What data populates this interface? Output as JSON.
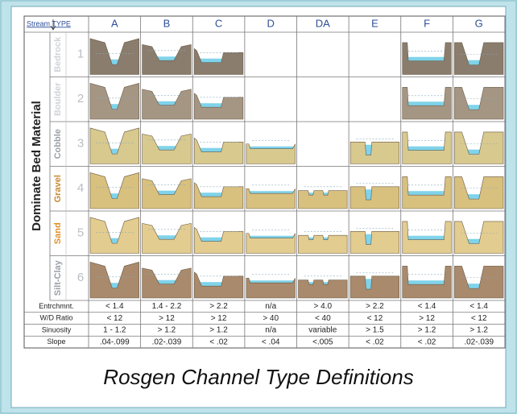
{
  "header": {
    "stream_type": "Stream TYPE",
    "side_label": "Dominate Bed Material"
  },
  "columns": [
    "A",
    "B",
    "C",
    "D",
    "DA",
    "E",
    "F",
    "G"
  ],
  "materials": [
    {
      "name": "Bedrock",
      "number": 1
    },
    {
      "name": "Boulder",
      "number": 2
    },
    {
      "name": "Cobble",
      "number": 3
    },
    {
      "name": "Gravel",
      "number": 4
    },
    {
      "name": "Sand",
      "number": 5
    },
    {
      "name": "Silt-Clay",
      "number": 6
    }
  ],
  "metrics": [
    {
      "label": "Entrchmnt.",
      "values": [
        "< 1.4",
        "1.4 - 2.2",
        "> 2.2",
        "n/a",
        "> 4.0",
        "> 2.2",
        "< 1.4",
        "< 1.4"
      ]
    },
    {
      "label": "W/D Ratio",
      "values": [
        "< 12",
        "> 12",
        "> 12",
        "> 40",
        "< 40",
        "< 12",
        "> 12",
        "< 12"
      ]
    },
    {
      "label": "Sinuosity",
      "values": [
        "1 - 1.2",
        "> 1.2",
        "> 1.2",
        "n/a",
        "variable",
        "> 1.5",
        "> 1.2",
        "> 1.2"
      ]
    },
    {
      "label": "Slope",
      "values": [
        ".04-.099",
        ".02-.039",
        "< .02",
        "< .04",
        "<.005",
        "< .02",
        "< .02",
        ".02-.039"
      ]
    }
  ],
  "caption": "Rosgen Channel Type Definitions"
}
